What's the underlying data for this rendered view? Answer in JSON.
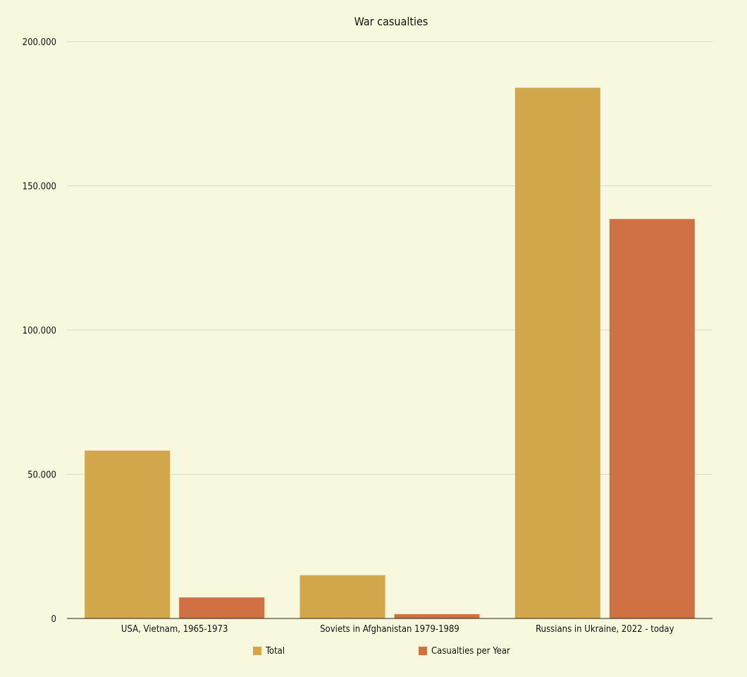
{
  "chart_data": {
    "type": "bar",
    "title": "War casualties",
    "xlabel": "",
    "ylabel": "",
    "ylim": [
      0,
      200000
    ],
    "y_ticks": [
      0,
      50000,
      100000,
      150000,
      200000
    ],
    "y_tick_labels": [
      "0",
      "50.000",
      "100.000",
      "150.000",
      "200.000"
    ],
    "categories": [
      "USA, Vietnam, 1965-1973",
      "Soviets in Afghanistan 1979-1989",
      "Russians in Ukraine, 2022 - today"
    ],
    "series": [
      {
        "name": "Total",
        "color": "#d2a64a",
        "values": [
          58200,
          15000,
          184000
        ]
      },
      {
        "name": "Casualties per Year",
        "color": "#cf7142",
        "values": [
          7300,
          1500,
          138500
        ]
      }
    ],
    "legend_position": "bottom",
    "grid": true
  }
}
